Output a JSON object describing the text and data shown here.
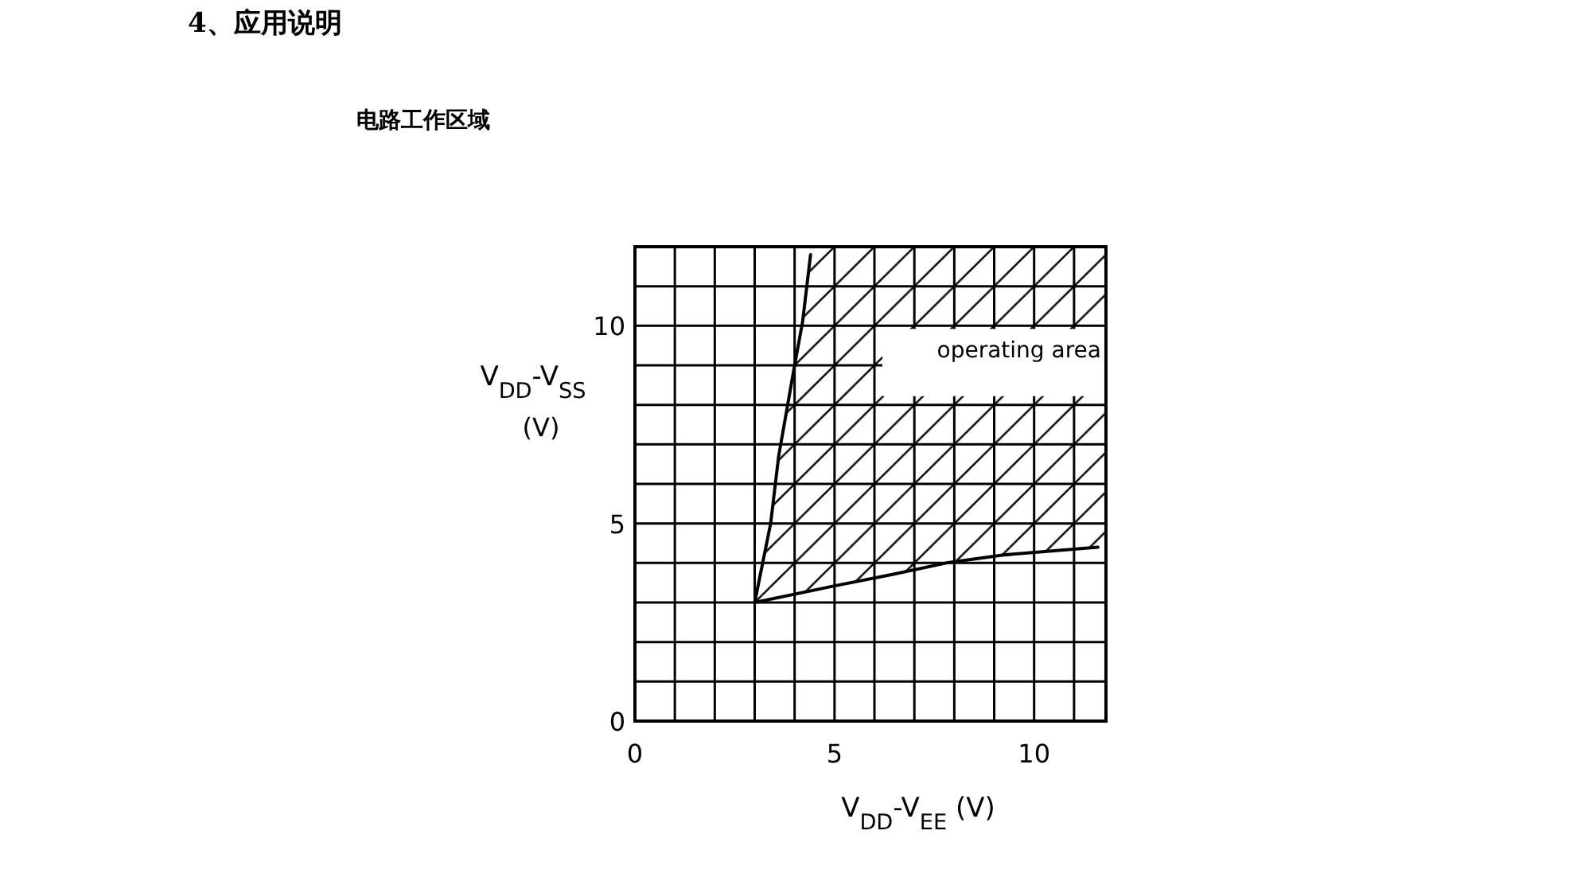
{
  "chart_data": {
    "type": "line",
    "title": "4、应用说明",
    "subtitle": "电路工作区域",
    "xlabel": "V$_{DD}$-V$_{EE}$ (V)",
    "ylabel": "V$_{DD}$-V$_{SS}$ (V)",
    "annotations": [
      "operating area"
    ],
    "xlim": [
      0,
      11.8
    ],
    "ylim": [
      0,
      12
    ],
    "xticks": [
      0,
      {
        "value": 1,
        "label": null
      },
      {
        "value": 2,
        "label": null
      },
      {
        "value": 3,
        "label": null
      },
      {
        "value": 4,
        "label": null
      },
      5,
      {
        "value": 6,
        "label": null
      },
      {
        "value": 7,
        "label": null
      },
      {
        "value": 8,
        "label": null
      },
      {
        "value": 9,
        "label": null
      },
      10,
      {
        "value": 11,
        "label": null
      }
    ],
    "yticks": [
      0,
      {
        "value": 1,
        "label": null
      },
      {
        "value": 2,
        "label": null
      },
      {
        "value": 3,
        "label": null
      },
      {
        "value": 4,
        "label": null
      },
      5,
      {
        "value": 6,
        "label": null
      },
      {
        "value": 7,
        "label": null
      },
      {
        "value": 8,
        "label": null
      },
      {
        "value": 9,
        "label": null
      },
      10,
      {
        "value": 11,
        "label": null
      }
    ],
    "grid": true,
    "marker": "none",
    "line_style": "solid",
    "series": [
      {
        "color": "#000000",
        "x": [
          3,
          3.4,
          3.6,
          4.0,
          4.2,
          4.4
        ],
        "values": [
          3,
          5,
          6.7,
          9,
          10.1,
          11.8
        ]
      },
      {
        "color": "#000000",
        "x": [
          3,
          4.9,
          6.4,
          7.8,
          9.2,
          11.6
        ],
        "values": [
          3,
          3.4,
          3.7,
          4.0,
          4.2,
          4.4
        ]
      }
    ]
  }
}
